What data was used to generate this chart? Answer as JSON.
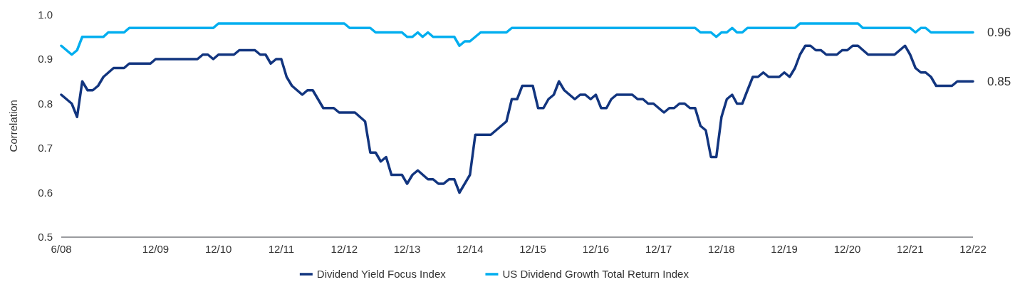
{
  "chart_data": {
    "type": "line",
    "ylabel": "Correlation",
    "xlim": [
      "2008-06",
      "2022-12"
    ],
    "ylim": [
      0.5,
      1
    ],
    "yticks": [
      0.5,
      0.6,
      0.7,
      0.8,
      0.9,
      {
        "value": 1,
        "label": "1.0"
      }
    ],
    "xticks": [
      {
        "value": "2008-06",
        "label": "6/08"
      },
      {
        "value": "2009-12",
        "label": "12/09"
      },
      {
        "value": "2010-12",
        "label": "12/10"
      },
      {
        "value": "2011-12",
        "label": "12/11"
      },
      {
        "value": "2012-12",
        "label": "12/12"
      },
      {
        "value": "2013-12",
        "label": "12/13"
      },
      {
        "value": "2014-12",
        "label": "12/14"
      },
      {
        "value": "2015-12",
        "label": "12/15"
      },
      {
        "value": "2016-12",
        "label": "12/16"
      },
      {
        "value": "2017-12",
        "label": "12/17"
      },
      {
        "value": "2018-12",
        "label": "12/18"
      },
      {
        "value": "2019-12",
        "label": "12/19"
      },
      {
        "value": "2020-12",
        "label": "12/20"
      },
      {
        "value": "2021-12",
        "label": "12/21"
      },
      {
        "value": "2022-12",
        "label": "12/22"
      }
    ],
    "grid": false,
    "legend": "bottom",
    "marker": "none",
    "line_style": "solid",
    "series": [
      {
        "name": "Dividend Yield Focus Index",
        "color": "#12357f",
        "x": [
          "2008-06",
          "2008-08",
          "2008-09",
          "2008-10",
          "2008-11",
          "2008-12",
          "2009-01",
          "2009-02",
          "2009-04",
          "2009-06",
          "2009-07",
          "2009-11",
          "2009-12",
          "2010-08",
          "2010-09",
          "2010-10",
          "2010-11",
          "2010-12",
          "2011-03",
          "2011-04",
          "2011-07",
          "2011-08",
          "2011-09",
          "2011-10",
          "2011-11",
          "2011-12",
          "2012-01",
          "2012-02",
          "2012-04",
          "2012-05",
          "2012-06",
          "2012-08",
          "2012-10",
          "2012-11",
          "2013-02",
          "2013-04",
          "2013-05",
          "2013-06",
          "2013-07",
          "2013-08",
          "2013-09",
          "2013-11",
          "2013-12",
          "2014-01",
          "2014-02",
          "2014-04",
          "2014-05",
          "2014-06",
          "2014-07",
          "2014-08",
          "2014-09",
          "2014-10",
          "2014-12",
          "2015-01",
          "2015-04",
          "2015-07",
          "2015-08",
          "2015-09",
          "2015-10",
          "2015-12",
          "2016-01",
          "2016-02",
          "2016-03",
          "2016-04",
          "2016-05",
          "2016-06",
          "2016-08",
          "2016-09",
          "2016-10",
          "2016-11",
          "2016-12",
          "2017-01",
          "2017-02",
          "2017-03",
          "2017-04",
          "2017-07",
          "2017-08",
          "2017-09",
          "2017-10",
          "2017-11",
          "2018-01",
          "2018-02",
          "2018-03",
          "2018-04",
          "2018-05",
          "2018-06",
          "2018-07",
          "2018-08",
          "2018-09",
          "2018-10",
          "2018-11",
          "2018-12",
          "2019-01",
          "2019-02",
          "2019-03",
          "2019-04",
          "2019-05",
          "2019-06",
          "2019-07",
          "2019-08",
          "2019-09",
          "2019-11",
          "2019-12",
          "2020-01",
          "2020-02",
          "2020-03",
          "2020-04",
          "2020-05",
          "2020-06",
          "2020-07",
          "2020-08",
          "2020-10",
          "2020-11",
          "2020-12",
          "2021-01",
          "2021-02",
          "2021-04",
          "2021-09",
          "2021-11",
          "2021-12",
          "2022-01",
          "2022-02",
          "2022-03",
          "2022-04",
          "2022-05",
          "2022-08",
          "2022-09",
          "2022-12"
        ],
        "values": [
          0.82,
          0.8,
          0.77,
          0.85,
          0.83,
          0.83,
          0.84,
          0.86,
          0.88,
          0.88,
          0.89,
          0.89,
          0.9,
          0.9,
          0.91,
          0.91,
          0.9,
          0.91,
          0.91,
          0.92,
          0.92,
          0.91,
          0.91,
          0.89,
          0.9,
          0.9,
          0.86,
          0.84,
          0.82,
          0.83,
          0.83,
          0.79,
          0.79,
          0.78,
          0.78,
          0.76,
          0.69,
          0.69,
          0.67,
          0.68,
          0.64,
          0.64,
          0.62,
          0.64,
          0.65,
          0.63,
          0.63,
          0.62,
          0.62,
          0.63,
          0.63,
          0.6,
          0.64,
          0.73,
          0.73,
          0.76,
          0.81,
          0.81,
          0.84,
          0.84,
          0.79,
          0.79,
          0.81,
          0.82,
          0.85,
          0.83,
          0.81,
          0.82,
          0.82,
          0.81,
          0.82,
          0.79,
          0.79,
          0.81,
          0.82,
          0.82,
          0.81,
          0.81,
          0.8,
          0.8,
          0.78,
          0.79,
          0.79,
          0.8,
          0.8,
          0.79,
          0.79,
          0.75,
          0.74,
          0.68,
          0.68,
          0.77,
          0.81,
          0.82,
          0.8,
          0.8,
          0.83,
          0.86,
          0.86,
          0.87,
          0.86,
          0.86,
          0.87,
          0.86,
          0.88,
          0.91,
          0.93,
          0.93,
          0.92,
          0.92,
          0.91,
          0.91,
          0.92,
          0.92,
          0.93,
          0.93,
          0.91,
          0.91,
          0.93,
          0.91,
          0.88,
          0.87,
          0.87,
          0.86,
          0.84,
          0.84,
          0.85,
          0.85
        ]
      },
      {
        "name": "US Dividend Growth Total Return Index",
        "color": "#00aeef",
        "x": [
          "2008-06",
          "2008-08",
          "2008-09",
          "2008-10",
          "2009-02",
          "2009-03",
          "2009-06",
          "2009-07",
          "2010-11",
          "2010-12",
          "2012-12",
          "2013-01",
          "2013-05",
          "2013-06",
          "2013-11",
          "2013-12",
          "2014-01",
          "2014-02",
          "2014-03",
          "2014-04",
          "2014-05",
          "2014-09",
          "2014-10",
          "2014-11",
          "2014-12",
          "2015-02",
          "2015-07",
          "2015-08",
          "2018-05",
          "2018-07",
          "2018-08",
          "2018-10",
          "2018-11",
          "2018-12",
          "2019-01",
          "2019-02",
          "2019-03",
          "2019-04",
          "2019-05",
          "2020-02",
          "2020-03",
          "2021-02",
          "2021-03",
          "2021-12",
          "2022-01",
          "2022-02",
          "2022-03",
          "2022-04",
          "2022-12"
        ],
        "values": [
          0.93,
          0.91,
          0.92,
          0.95,
          0.95,
          0.96,
          0.96,
          0.97,
          0.97,
          0.98,
          0.98,
          0.97,
          0.97,
          0.96,
          0.96,
          0.95,
          0.95,
          0.96,
          0.95,
          0.96,
          0.95,
          0.95,
          0.93,
          0.94,
          0.94,
          0.96,
          0.96,
          0.97,
          0.97,
          0.97,
          0.96,
          0.96,
          0.95,
          0.96,
          0.96,
          0.97,
          0.96,
          0.96,
          0.97,
          0.97,
          0.98,
          0.98,
          0.97,
          0.97,
          0.96,
          0.97,
          0.97,
          0.96,
          0.96
        ]
      }
    ],
    "annotations": [
      {
        "text": "0.96",
        "x": "2022-12",
        "y": 0.96
      },
      {
        "text": "0.85",
        "x": "2022-12",
        "y": 0.85
      }
    ]
  }
}
